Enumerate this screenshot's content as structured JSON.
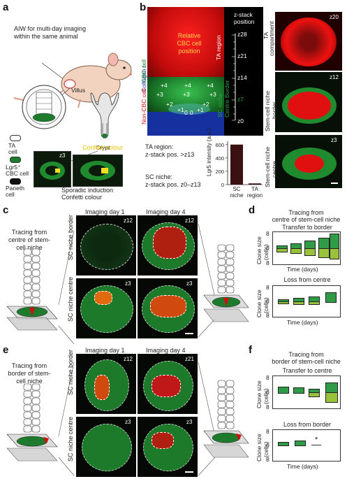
{
  "panels": {
    "a": "a",
    "b": "b",
    "c": "c",
    "d": "d",
    "e": "e",
    "f": "f"
  },
  "a": {
    "aiw": "AIW for multi-day imaging",
    "aiw2": "within the same animal",
    "villus": "Villus",
    "crypt": "Crypt",
    "legend_ta": "TA",
    "legend_ta2": "cell",
    "legend_lgr": "Lgr5⁺",
    "legend_lgr2": "CBC cell",
    "legend_paneth": "Paneth",
    "legend_paneth2": "cell",
    "z3": "z3",
    "confetti": "Confetti colour",
    "sporadic": "Sporadic induction",
    "sporadic2": "Confetti colour"
  },
  "b": {
    "collagen": "Collagen I",
    "noncbc": "Non-CBC cell",
    "cbc": "CBC cell",
    "relative": "Relative",
    "relative2": "CBC cell",
    "relative3": "position",
    "ta_region": "TA region",
    "sc_border": "SC niche",
    "sc_border2": "Centre Border",
    "zstack": "z-stack",
    "zstack2": "position",
    "ta_comp": "TA",
    "ta_comp2": "compartment",
    "z_ticks": [
      "z28",
      "z21",
      "z14",
      "z7",
      "z0"
    ],
    "positions": [
      "+4",
      "+4",
      "+4",
      "+3",
      "+3",
      "+3",
      "+2",
      "+2",
      "+1",
      "0",
      "0",
      "+1"
    ],
    "ta_def": "TA region:",
    "ta_def2": "z-stack pos. >z13",
    "sc_def": "SC niche:",
    "sc_def2": "z-stack pos. z0–z13",
    "right_labels": [
      "z20",
      "z12",
      "z3"
    ],
    "stem_border": "Stem-cell niche",
    "stem_border2": "border",
    "stem_centre": "Stem-cell niche",
    "stem_centre2": "centre"
  },
  "chart_data": {
    "type": "bar",
    "categories": [
      "SC niche",
      "TA region"
    ],
    "values": [
      600,
      18
    ],
    "ylabel": "Lgr5 intensity (a.u.)",
    "yticks": [
      "600",
      "400",
      "200",
      "0"
    ],
    "ylim": [
      0,
      650
    ]
  },
  "c": {
    "title": "Tracing from",
    "title2": "centre of stem-",
    "title3": "cell niche",
    "day1": "Imaging day 1",
    "day4": "Imaging day 4",
    "row1": "SC niche border",
    "row2": "SC niche centre",
    "z_labels": [
      "z12",
      "z12",
      "z3",
      "z3"
    ]
  },
  "d": {
    "title": "Tracing from",
    "title2": "centre of stem-cell niche",
    "sub1": "Transfer to border",
    "sub2": "Loss from centre",
    "ylabel": "Clone size",
    "ylabel2": "(cells)",
    "ticks1": [
      "8",
      "0",
      "8"
    ],
    "ticks2": [
      "8",
      "0",
      "8"
    ],
    "xlabel": "Time (days)"
  },
  "e": {
    "title": "Tracing from",
    "title2": "border of stem-",
    "title3": "cell niche",
    "day1": "Imaging day 1",
    "day4": "Imaging day 4",
    "row1": "SC niche border",
    "row2": "SC niche centre",
    "z_labels": [
      "z12",
      "z21",
      "z3",
      "z3"
    ]
  },
  "f": {
    "title": "Tracing from",
    "title2": "border of stem-cell niche",
    "sub1": "Transfer to centre",
    "sub2": "Loss from border",
    "ylabel": "Clone size",
    "ylabel2": "(cells)",
    "ticks1": [
      "8",
      "0",
      "8"
    ],
    "ticks2": [
      "8",
      "0",
      "8"
    ],
    "xlabel": "Time (days)",
    "star": "*"
  }
}
